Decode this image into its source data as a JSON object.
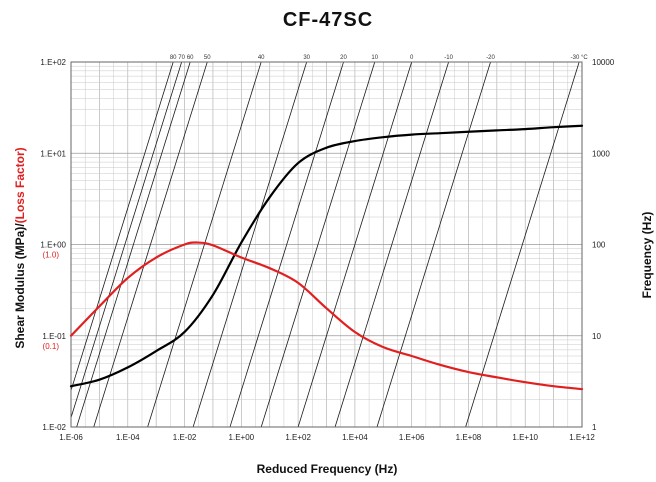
{
  "chart_data": {
    "type": "line",
    "title": "CF-47SC",
    "xlabel": "Reduced Frequency (Hz)",
    "ylabel_left_black": "Shear Modulus (MPa)/",
    "ylabel_left_red": "(Loss Factor)",
    "ylabel_right": "Frequency (Hz)",
    "x_scale": "log",
    "y_scale": "log",
    "xlim": [
      1e-06,
      1000000000000.0
    ],
    "ylim_left": [
      0.01,
      100
    ],
    "ylim_right": [
      1,
      10000
    ],
    "x_tick_labels": [
      "1.E-06",
      "1.E-04",
      "1.E-02",
      "1.E+00",
      "1.E+02",
      "1.E+04",
      "1.E+06",
      "1.E+08",
      "1.E+10",
      "1.E+12"
    ],
    "y_left_tick_labels": [
      "1.E-02",
      "1.E-01",
      "1.E+00",
      "1.E+01",
      "1.E+02"
    ],
    "y_left_loss_labels": [
      "(0.1)",
      "(1.0)"
    ],
    "y_right_tick_labels": [
      "1",
      "10",
      "100",
      "1000",
      "10000"
    ],
    "grid": true,
    "colors": {
      "modulus": "#000000",
      "loss": "#e02020",
      "isotherm": "#1a1a1a",
      "grid": "#c8c8c8"
    },
    "temperature_labels": [
      "80",
      "70",
      "60",
      "50",
      "40",
      "30",
      "20",
      "10",
      "0",
      "-10",
      "-20",
      "-30 °C"
    ],
    "isotherm_top_reduced_frequency": [
      0.00398,
      0.0079,
      0.0158,
      0.0631,
      5.0,
      200,
      3980,
      50100,
      1000000,
      20000000,
      600000000,
      794000000000.0
    ],
    "series": [
      {
        "key": "modulus",
        "x": [
          1e-06,
          1e-05,
          0.0001,
          0.001,
          0.01,
          0.1,
          1,
          10,
          100,
          1000,
          10000,
          100000,
          1000000,
          10000000,
          100000000,
          1000000000.0,
          10000000000.0,
          100000000000.0,
          1000000000000.0
        ],
        "y": [
          0.028,
          0.033,
          0.045,
          0.068,
          0.11,
          0.28,
          1.05,
          3.3,
          7.8,
          11.5,
          13.6,
          15.0,
          16.0,
          16.6,
          17.2,
          17.8,
          18.4,
          19.3,
          20.0
        ]
      },
      {
        "key": "loss",
        "x": [
          1e-06,
          1e-05,
          0.0001,
          0.001,
          0.01,
          0.03,
          0.1,
          1,
          10,
          100,
          1000,
          10000,
          100000,
          1000000,
          10000000,
          100000000,
          1000000000.0,
          10000000000.0,
          100000000000.0,
          1000000000000.0
        ],
        "y": [
          0.1,
          0.21,
          0.43,
          0.72,
          1.0,
          1.05,
          0.98,
          0.72,
          0.55,
          0.38,
          0.2,
          0.11,
          0.075,
          0.06,
          0.048,
          0.04,
          0.035,
          0.031,
          0.028,
          0.026
        ]
      }
    ]
  }
}
